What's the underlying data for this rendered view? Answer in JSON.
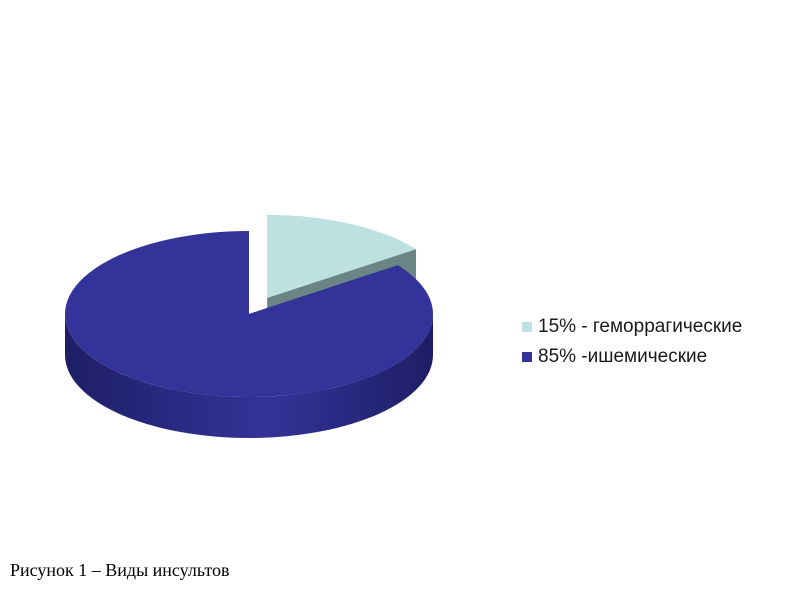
{
  "chart_data": {
    "type": "pie",
    "three_d": true,
    "exploded_slice": "15% - геморрагические",
    "slices": [
      {
        "label": "15% - геморрагические",
        "value": 15,
        "color": "#bde0e0",
        "side_color": "#6b8585"
      },
      {
        "label": "85% -ишемические",
        "value": 85,
        "color": "#333399",
        "side_color": "#1e1e66"
      }
    ],
    "legend_position": "right"
  },
  "caption": "Рисунок 1 – Виды инсультов"
}
